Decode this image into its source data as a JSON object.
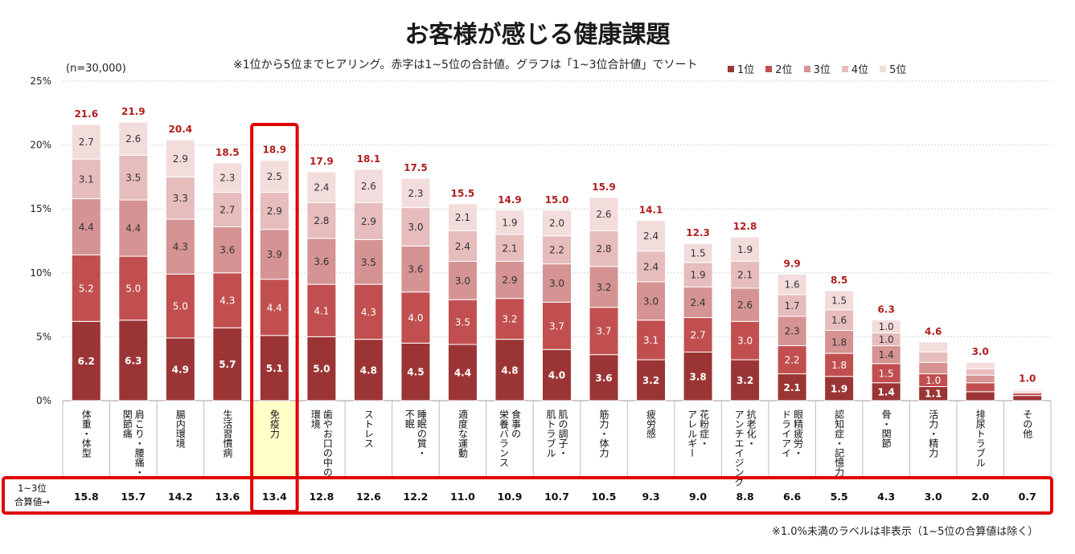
{
  "title": "お客様が感じる健康課題",
  "subtitle": "※1位から5位までヒアリング。赤字は1~5位の合計値。グラフは「1~3位合計値」でソート",
  "sample": "(n=30,000)",
  "footnote": "※1.0%未満のラベルは非表示（1~5位の合算値は除く）",
  "row_label": [
    "1~3位",
    "合算値→"
  ],
  "colors": [
    "#9b3535",
    "#c24f4f",
    "#d59393",
    "#e6bcbc",
    "#f3dcdc"
  ],
  "highlight_color": "#e00000",
  "highlight_fill": "#ffffc8",
  "total_color": "#b01e1e",
  "chart_data": {
    "type": "bar",
    "stacked": true,
    "ylim": [
      0,
      25
    ],
    "yticks": [
      "0%",
      "5%",
      "10%",
      "15%",
      "20%",
      "25%"
    ],
    "legend": [
      "1位",
      "2位",
      "3位",
      "4位",
      "5位"
    ],
    "highlight_index": 4,
    "categories": [
      [
        "体重・体型"
      ],
      [
        "肩こり・腰痛・",
        "関節痛"
      ],
      [
        "腸内環境"
      ],
      [
        "生活習慣病"
      ],
      [
        "免疫力"
      ],
      [
        "歯やお口の中の",
        "環境"
      ],
      [
        "ストレス"
      ],
      [
        "睡眠の質・",
        "不眠"
      ],
      [
        "適度な運動"
      ],
      [
        "食事の",
        "栄養バランス"
      ],
      [
        "肌の調子・",
        "肌トラブル"
      ],
      [
        "筋力・体力"
      ],
      [
        "疲労感"
      ],
      [
        "花粉症・",
        "アレルギー"
      ],
      [
        "抗老化・",
        "アンチエイジング"
      ],
      [
        "眼精疲労・",
        "ドライアイ"
      ],
      [
        "認知症・記憶力"
      ],
      [
        "骨・関節"
      ],
      [
        "活力・精力"
      ],
      [
        "排尿トラブル"
      ],
      [
        "その他"
      ]
    ],
    "series": [
      {
        "name": "1位",
        "values": [
          6.2,
          6.3,
          4.9,
          5.7,
          5.1,
          5.0,
          4.8,
          4.5,
          4.4,
          4.8,
          4.0,
          3.6,
          3.2,
          3.8,
          3.2,
          2.1,
          1.9,
          1.4,
          1.1,
          0.7,
          0.4
        ]
      },
      {
        "name": "2位",
        "values": [
          5.2,
          5.0,
          5.0,
          4.3,
          4.4,
          4.1,
          4.3,
          4.0,
          3.5,
          3.2,
          3.7,
          3.7,
          3.1,
          2.7,
          3.0,
          2.2,
          1.8,
          1.5,
          1.0,
          0.7,
          0.2
        ]
      },
      {
        "name": "3位",
        "values": [
          4.4,
          4.4,
          4.3,
          3.6,
          3.9,
          3.6,
          3.5,
          3.6,
          3.0,
          2.9,
          3.0,
          3.2,
          3.0,
          2.4,
          2.6,
          2.3,
          1.8,
          1.4,
          0.9,
          0.6,
          0.1
        ]
      },
      {
        "name": "4位",
        "values": [
          3.1,
          3.5,
          3.3,
          2.7,
          2.9,
          2.8,
          2.9,
          3.0,
          2.4,
          2.1,
          2.2,
          2.8,
          2.4,
          1.9,
          2.1,
          1.7,
          1.6,
          1.0,
          0.8,
          0.5,
          0.1
        ]
      },
      {
        "name": "5位",
        "values": [
          2.7,
          2.6,
          2.9,
          2.3,
          2.5,
          2.4,
          2.6,
          2.3,
          2.1,
          1.9,
          2.0,
          2.6,
          2.4,
          1.5,
          1.9,
          1.6,
          1.5,
          1.0,
          0.8,
          0.5,
          0.1
        ]
      }
    ],
    "totals": [
      "21.6",
      "21.9",
      "20.4",
      "18.5",
      "18.9",
      "17.9",
      "18.1",
      "17.5",
      "15.5",
      "14.9",
      "15.0",
      "15.9",
      "14.1",
      "12.3",
      "12.8",
      "9.9",
      "8.5",
      "6.3",
      "4.6",
      "3.0",
      "1.0"
    ],
    "top3_sums": [
      "15.8",
      "15.7",
      "14.2",
      "13.6",
      "13.4",
      "12.8",
      "12.6",
      "12.2",
      "11.0",
      "10.9",
      "10.7",
      "10.5",
      "9.3",
      "9.0",
      "8.8",
      "6.6",
      "5.5",
      "4.3",
      "3.0",
      "2.0",
      "0.7"
    ]
  }
}
